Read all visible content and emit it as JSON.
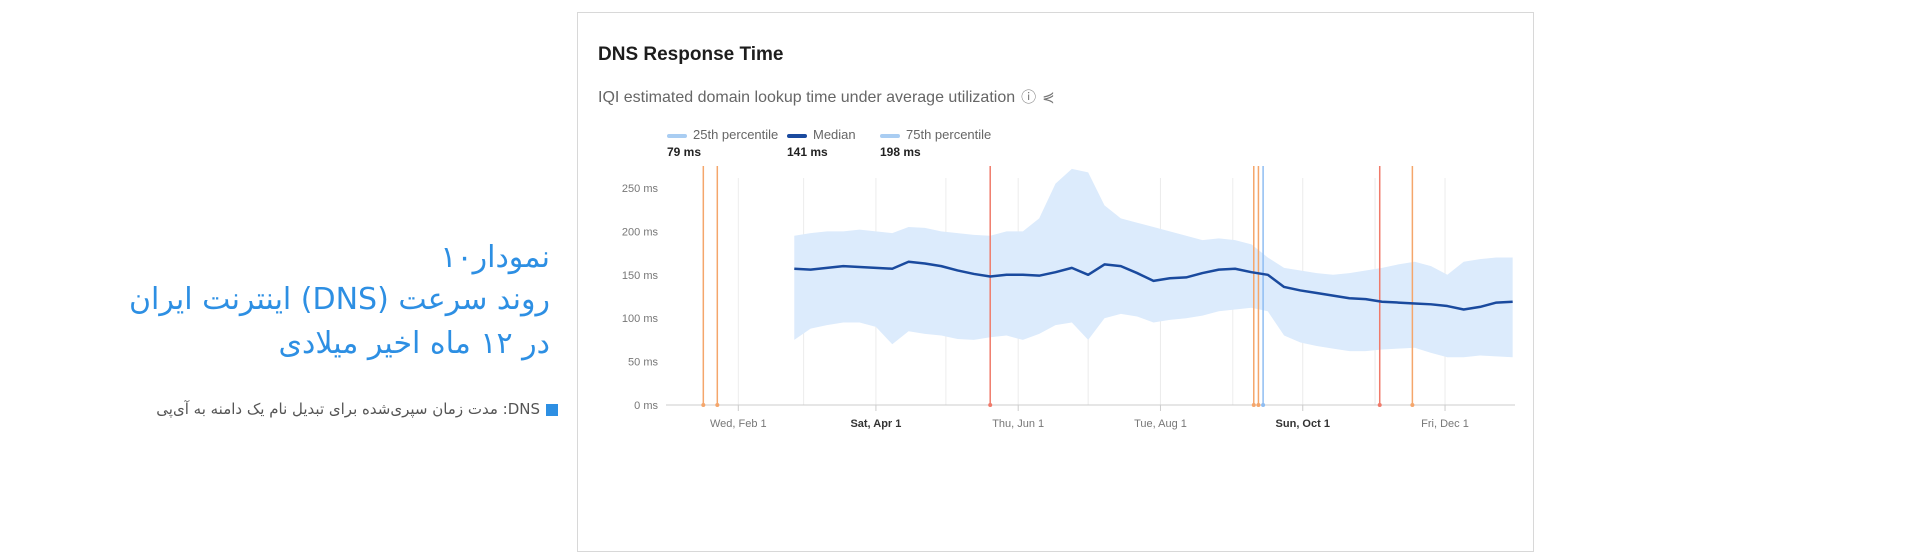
{
  "article": {
    "title_line1": "نمودار۱۰",
    "title_line2": "روند سرعت (DNS) اینترنت ایران",
    "title_line3": "در ۱۲ ماه اخیر میلادی",
    "note": "DNS: مدت زمان سپری‌شده برای تبدیل نام یک دامنه به آی‌پی",
    "accent": "#2d8fe3"
  },
  "card": {
    "title": "DNS Response Time",
    "subtitle": "IQI estimated domain lookup time under average utilization",
    "icons": [
      "help-icon",
      "share-icon"
    ]
  },
  "chart_data": {
    "type": "area",
    "title": "DNS Response Time",
    "xlabel": "",
    "ylabel": "",
    "ylim": [
      0,
      250
    ],
    "y_ticks": [
      "0 ms",
      "50 ms",
      "100 ms",
      "150 ms",
      "200 ms",
      "250 ms"
    ],
    "x_range": [
      "2023-01-01",
      "2023-12-31"
    ],
    "x_ticks": [
      {
        "date": "2023-02-01",
        "label": "Wed, Feb 1",
        "bold": false
      },
      {
        "date": "2023-04-01",
        "label": "Sat, Apr 1",
        "bold": true
      },
      {
        "date": "2023-06-01",
        "label": "Thu, Jun 1",
        "bold": false
      },
      {
        "date": "2023-08-01",
        "label": "Tue, Aug 1",
        "bold": false
      },
      {
        "date": "2023-10-01",
        "label": "Sun, Oct 1",
        "bold": true
      },
      {
        "date": "2023-12-01",
        "label": "Fri, Dec 1",
        "bold": false
      }
    ],
    "grid": "vertical",
    "legend": [
      {
        "name": "25th percentile",
        "value": "79 ms",
        "color": "#a9cdf2"
      },
      {
        "name": "Median",
        "value": "141 ms",
        "color": "#1a4a9e"
      },
      {
        "name": "75th percentile",
        "value": "198 ms",
        "color": "#a9cdf2"
      }
    ],
    "band_color": "#dcebfc",
    "x": [
      "2023-02-25",
      "2023-03-04",
      "2023-03-11",
      "2023-03-18",
      "2023-03-25",
      "2023-04-01",
      "2023-04-08",
      "2023-04-15",
      "2023-04-22",
      "2023-04-29",
      "2023-05-06",
      "2023-05-13",
      "2023-05-20",
      "2023-05-27",
      "2023-06-03",
      "2023-06-10",
      "2023-06-17",
      "2023-06-24",
      "2023-07-01",
      "2023-07-08",
      "2023-07-15",
      "2023-07-22",
      "2023-07-29",
      "2023-08-05",
      "2023-08-12",
      "2023-08-19",
      "2023-08-26",
      "2023-09-02",
      "2023-09-09",
      "2023-09-16",
      "2023-09-23",
      "2023-09-30",
      "2023-10-07",
      "2023-10-14",
      "2023-10-21",
      "2023-10-28",
      "2023-11-04",
      "2023-11-11",
      "2023-11-18",
      "2023-11-25",
      "2023-12-02",
      "2023-12-09",
      "2023-12-16",
      "2023-12-23",
      "2023-12-30"
    ],
    "series": [
      {
        "name": "25th percentile",
        "values": [
          75,
          88,
          92,
          95,
          95,
          90,
          70,
          85,
          82,
          80,
          76,
          75,
          78,
          80,
          75,
          82,
          92,
          95,
          75,
          100,
          105,
          102,
          95,
          98,
          100,
          103,
          108,
          110,
          112,
          108,
          80,
          72,
          68,
          65,
          62,
          62,
          64,
          65,
          66,
          60,
          55,
          55,
          57,
          56,
          55
        ]
      },
      {
        "name": "Median",
        "values": [
          157,
          156,
          158,
          160,
          159,
          158,
          157,
          165,
          163,
          160,
          155,
          151,
          148,
          150,
          150,
          149,
          153,
          158,
          150,
          162,
          160,
          152,
          143,
          146,
          147,
          152,
          156,
          157,
          153,
          150,
          136,
          132,
          129,
          126,
          123,
          122,
          119,
          118,
          117,
          116,
          114,
          110,
          113,
          118,
          119
        ]
      },
      {
        "name": "75th percentile",
        "values": [
          195,
          198,
          200,
          200,
          202,
          200,
          198,
          205,
          204,
          200,
          198,
          196,
          195,
          200,
          200,
          215,
          255,
          272,
          268,
          230,
          215,
          210,
          205,
          200,
          195,
          190,
          192,
          190,
          185,
          170,
          158,
          155,
          152,
          150,
          152,
          155,
          158,
          162,
          165,
          160,
          150,
          165,
          168,
          170,
          170
        ]
      }
    ],
    "event_markers": [
      {
        "date": "2023-01-17",
        "color": "#f5a66b"
      },
      {
        "date": "2023-01-23",
        "color": "#f5a66b"
      },
      {
        "date": "2023-05-20",
        "color": "#f07a6a"
      },
      {
        "date": "2023-09-10",
        "color": "#f5a66b"
      },
      {
        "date": "2023-09-12",
        "color": "#f5a66b"
      },
      {
        "date": "2023-09-14",
        "color": "#8fbdf2"
      },
      {
        "date": "2023-11-03",
        "color": "#f07a6a"
      },
      {
        "date": "2023-11-17",
        "color": "#f5a66b"
      }
    ]
  }
}
